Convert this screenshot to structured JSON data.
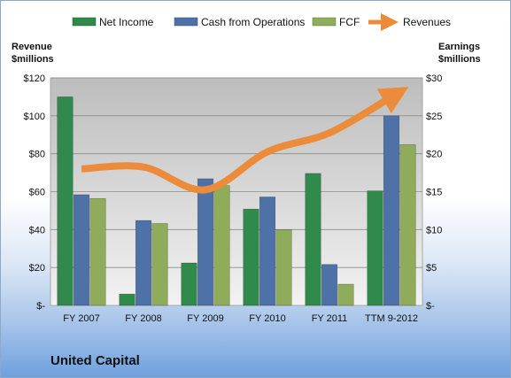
{
  "company_label": "United Capital",
  "chart_data": {
    "type": "bar",
    "categories": [
      "FY 2007",
      "FY 2008",
      "FY 2009",
      "FY 2010",
      "FY 2011",
      "TTM 9-2012"
    ],
    "left_axis": {
      "title_line1": "Revenue",
      "title_line2": "$millions",
      "ylim": [
        0,
        120
      ],
      "tick_values": [
        0,
        20,
        40,
        60,
        80,
        100,
        120
      ],
      "tick_labels": [
        "$-",
        "$20",
        "$40",
        "$60",
        "$80",
        "$100",
        "$120"
      ]
    },
    "right_axis": {
      "title_line1": "Earnings",
      "title_line2": "$millions",
      "ylim": [
        0,
        30
      ],
      "tick_values": [
        0,
        5,
        10,
        15,
        20,
        25,
        30
      ],
      "tick_labels": [
        "$-",
        "$5",
        "$10",
        "$15",
        "$20",
        "$25",
        "$30"
      ]
    },
    "series": [
      {
        "name": "Net Income",
        "type": "bar",
        "axis": "right",
        "color": "#2f8a4b",
        "values": [
          27.5,
          1.5,
          5.6,
          12.7,
          17.4,
          15.1
        ]
      },
      {
        "name": "Cash from Operations",
        "type": "bar",
        "axis": "right",
        "color": "#4e71a8",
        "values": [
          14.6,
          11.2,
          16.7,
          14.3,
          5.4,
          25.0
        ]
      },
      {
        "name": "FCF",
        "type": "bar",
        "axis": "right",
        "color": "#8fac5a",
        "values": [
          14.1,
          10.8,
          15.8,
          10.0,
          2.8,
          21.2
        ]
      },
      {
        "name": "Revenues",
        "type": "line",
        "axis": "left",
        "color": "#ec8c3a",
        "values": [
          72,
          73,
          61,
          81,
          91,
          110
        ]
      }
    ],
    "grid": true,
    "legend_position": "top"
  }
}
